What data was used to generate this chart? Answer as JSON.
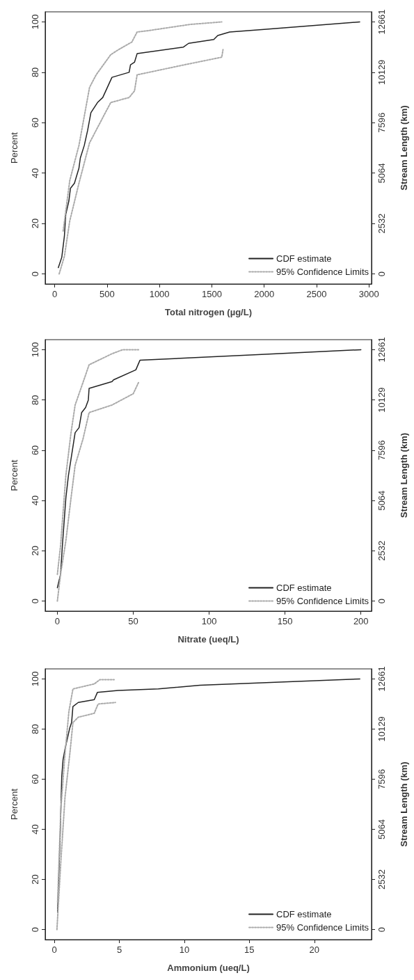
{
  "chart_data": [
    {
      "type": "line",
      "xlabel": "Total nitrogen (µg/L)",
      "ylabel": "Percent",
      "y2label": "Stream Length (km)",
      "xlim": [
        -90,
        3025
      ],
      "ylim": [
        -4,
        104
      ],
      "xticks": [
        0,
        500,
        1000,
        1500,
        2000,
        2500,
        3000
      ],
      "yticks": [
        0,
        20,
        40,
        60,
        80,
        100
      ],
      "y2lim": [
        -506,
        13168
      ],
      "y2ticks": [
        0,
        2532,
        5064,
        7596,
        10129,
        12661
      ],
      "legend": "bottom right",
      "marker": "none",
      "grid": false,
      "series": [
        {
          "name": "CDF estimate",
          "color": "#222222",
          "line_style": "solid",
          "x": [
            35,
            68,
            93,
            106,
            136,
            151,
            189,
            232,
            245,
            283,
            315,
            346,
            409,
            459,
            547,
            711,
            724,
            762,
            787,
            1229,
            1279,
            1519,
            1557,
            1670,
            2000,
            2912
          ],
          "values": [
            2.5,
            6.6,
            15,
            23.6,
            29,
            34,
            36,
            42,
            46,
            51,
            57,
            64,
            68,
            70,
            78,
            80,
            83,
            84,
            87.4,
            90,
            91.5,
            93,
            94.6,
            96,
            97,
            100
          ]
        },
        {
          "name": "95% Confidence Limits",
          "color": "#aaaaaa",
          "line_style": "dotted",
          "x": [
            81,
            144,
            232,
            333,
            396,
            535,
            610,
            737,
            787,
            888,
            1292,
            1595
          ],
          "values": [
            17,
            37,
            51,
            74,
            79,
            87,
            89,
            92,
            96,
            96.5,
            99,
            100
          ]
        },
        {
          "color": "#aaaaaa",
          "line_style": "dotted",
          "x": [
            43,
            93,
            144,
            232,
            333,
            459,
            535,
            711,
            762,
            787,
            1241,
            1595,
            1607
          ],
          "values": [
            0,
            7,
            21,
            36,
            52,
            62,
            68,
            70,
            72.6,
            79,
            83,
            86,
            89
          ]
        }
      ]
    },
    {
      "type": "line",
      "xlabel": "Nitrate (ueq/L)",
      "ylabel": "Percent",
      "y2label": "Stream Length (km)",
      "xlim": [
        -8,
        207
      ],
      "ylim": [
        -4,
        104
      ],
      "xticks": [
        0,
        50,
        100,
        150,
        200
      ],
      "yticks": [
        0,
        20,
        40,
        60,
        80,
        100
      ],
      "y2lim": [
        -506,
        13168
      ],
      "y2ticks": [
        0,
        2532,
        5064,
        7596,
        10129,
        12661
      ],
      "legend": "bottom right",
      "marker": "none",
      "grid": false,
      "series": [
        {
          "name": "CDF estimate",
          "color": "#222222",
          "line_style": "solid",
          "x": [
            0,
            2.1,
            3.3,
            5.6,
            7.3,
            9.9,
            11.7,
            14.3,
            16,
            18.6,
            20.4,
            20.9,
            36,
            37,
            51.7,
            54.4,
            200
          ],
          "values": [
            5.3,
            10.6,
            22,
            41,
            50,
            60,
            67,
            69,
            75,
            77,
            80,
            84.6,
            87.3,
            88,
            92,
            95.8,
            100
          ]
        },
        {
          "name": "95% Confidence Limits",
          "color": "#aaaaaa",
          "line_style": "dotted",
          "x": [
            0,
            2.1,
            5.6,
            9,
            11.7,
            16.9,
            20.9,
            36,
            43,
            53.5
          ],
          "values": [
            10.6,
            22,
            50,
            67,
            78,
            87,
            94,
            98.4,
            100,
            100
          ]
        },
        {
          "color": "#aaaaaa",
          "line_style": "dotted",
          "x": [
            0,
            2.1,
            5.6,
            9,
            11.7,
            16.9,
            20.9,
            36,
            50,
            53.5
          ],
          "values": [
            0,
            10.6,
            24,
            41,
            54,
            64.5,
            75,
            78,
            82.5,
            87
          ]
        }
      ]
    },
    {
      "type": "line",
      "xlabel": "Ammonium (ueq/L)",
      "ylabel": "Percent",
      "y2label": "Stream Length (km)",
      "xlim": [
        -0.7,
        24.4
      ],
      "ylim": [
        -4,
        104
      ],
      "xticks": [
        0,
        5,
        10,
        15,
        20
      ],
      "yticks": [
        0,
        20,
        40,
        60,
        80,
        100
      ],
      "y2lim": [
        -506,
        13168
      ],
      "y2ticks": [
        0,
        2532,
        5064,
        7596,
        10129,
        12661
      ],
      "legend": "bottom right",
      "marker": "none",
      "grid": false,
      "series": [
        {
          "name": "CDF estimate",
          "color": "#222222",
          "line_style": "solid",
          "x": [
            0.25,
            0.31,
            0.45,
            0.57,
            0.67,
            0.82,
            1.19,
            1.33,
            1.43,
            1.84,
            3.07,
            3.31,
            4.9,
            8,
            11.2,
            23.5
          ],
          "values": [
            6.8,
            16.4,
            37.8,
            61,
            67.7,
            72,
            80.5,
            82.6,
            89,
            90.6,
            91.7,
            94.6,
            95.4,
            96,
            97.5,
            100
          ]
        },
        {
          "name": "95% Confidence Limits",
          "color": "#aaaaaa",
          "line_style": "dotted",
          "x": [
            0.25,
            0.5,
            0.82,
            1.12,
            1.43,
            3.07,
            3.5,
            4.6
          ],
          "values": [
            11,
            48,
            70,
            87,
            96,
            98,
            99.7,
            99.7
          ]
        },
        {
          "color": "#aaaaaa",
          "line_style": "dotted",
          "x": [
            0.2,
            0.5,
            0.82,
            1.23,
            1.43,
            1.84,
            3.07,
            3.37,
            4.7
          ],
          "values": [
            0,
            27,
            52.7,
            72,
            82.6,
            84.7,
            86.3,
            90,
            90.6
          ]
        }
      ]
    }
  ]
}
